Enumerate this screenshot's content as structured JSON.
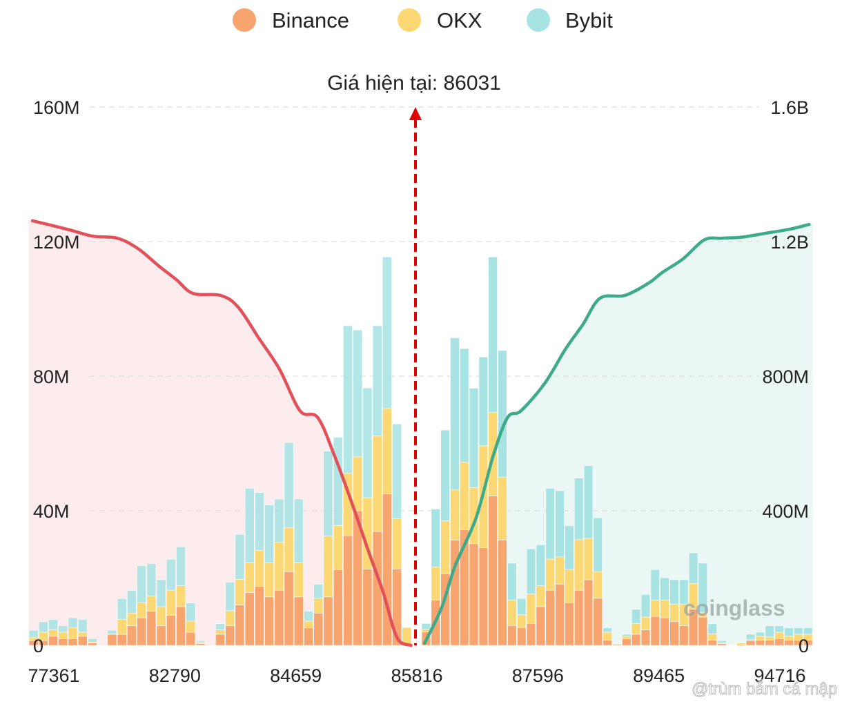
{
  "legend": [
    {
      "name": "Binance",
      "color": "#F7A46E"
    },
    {
      "name": "OKX",
      "color": "#FCD874"
    },
    {
      "name": "Bybit",
      "color": "#A8E3E4"
    }
  ],
  "watermarks": {
    "brand": "coinglass",
    "credit": "@trùm bắm cá mập"
  },
  "chart_data": {
    "type": "bar",
    "stacked": true,
    "title": "Giá hiện tại: 86031",
    "current_price": 86031,
    "left_axis": {
      "ticks": [
        "0",
        "40M",
        "80M",
        "120M",
        "160M"
      ],
      "range": [
        0,
        160
      ],
      "unit": "M"
    },
    "right_axis": {
      "ticks": [
        "0",
        "400M",
        "800M",
        "1.2B",
        "1.6B"
      ],
      "range": [
        0,
        1.6
      ],
      "unit": "B"
    },
    "x_tick_labels": [
      "77361",
      "82790",
      "84659",
      "85816",
      "87596",
      "89465",
      "94716"
    ],
    "grid": true,
    "legend_position": "top",
    "series_order": [
      "Binance",
      "OKX",
      "Bybit"
    ],
    "colors": {
      "short_line": "#E2505A",
      "short_fill": "#FDECEE",
      "long_line": "#3DAA8A",
      "long_fill": "#EAF7F4",
      "current_price_line": "#E00000"
    },
    "left_bars_M": [
      [
        1.4,
        0.9,
        2.2
      ],
      [
        1.4,
        2.5,
        3.1
      ],
      [
        2.7,
        1.9,
        3.1
      ],
      [
        2.0,
        1.9,
        1.9
      ],
      [
        2.0,
        3.3,
        2.9
      ],
      [
        2.7,
        1.2,
        3.8
      ],
      [
        0.7,
        0.3,
        1.0
      ],
      null,
      [
        3.3,
        0.1,
        1.1
      ],
      [
        3.3,
        4.4,
        6.2
      ],
      [
        5.8,
        3.8,
        6.7
      ],
      [
        8.2,
        4.5,
        11.0
      ],
      [
        10.1,
        4.5,
        9.7
      ],
      [
        5.8,
        5.7,
        8.0
      ],
      [
        8.9,
        7.5,
        9.2
      ],
      [
        11.5,
        6.2,
        11.6
      ],
      [
        3.9,
        3.3,
        5.4
      ],
      [
        0.5,
        0.4,
        0.5
      ],
      null,
      [
        3.3,
        1.3,
        1.8
      ],
      [
        5.8,
        4.5,
        8.5
      ],
      [
        12.0,
        7.6,
        13.4
      ],
      [
        15.7,
        8.8,
        22.2
      ],
      [
        17.5,
        10.7,
        17.2
      ],
      [
        14.4,
        10.1,
        17.2
      ],
      [
        16.4,
        14.2,
        12.9
      ],
      [
        21.9,
        13.1,
        25.3
      ],
      [
        14.4,
        10.1,
        19.0
      ],
      [
        5.2,
        2.0,
        3.0
      ],
      [
        9.6,
        4.4,
        4.2
      ],
      [
        14.4,
        18.1,
        25.2
      ],
      [
        22.5,
        13.1,
        26.2
      ],
      [
        32.6,
        18.5,
        43.9
      ],
      [
        40.0,
        16.0,
        37.7
      ],
      [
        22.7,
        21.2,
        32.6
      ],
      [
        33.8,
        28.4,
        32.8
      ],
      [
        45.0,
        25.4,
        45.0
      ],
      [
        22.7,
        14.9,
        28.2
      ],
      [
        0.3,
        5.0,
        0
      ]
    ],
    "right_bars_M": [
      [
        4.0,
        0.7,
        1.8
      ],
      [
        13.4,
        9.9,
        17.2
      ],
      [
        21.3,
        15.7,
        27.0
      ],
      [
        31.3,
        14.9,
        45.2
      ],
      [
        34.4,
        20.0,
        33.8
      ],
      [
        30.2,
        16.7,
        29.5
      ],
      [
        29.0,
        30.3,
        26.4
      ],
      [
        44.4,
        24.8,
        46.2
      ],
      [
        31.3,
        18.6,
        37.7
      ],
      [
        5.9,
        7.5,
        11.0
      ],
      [
        5.3,
        3.8,
        4.8
      ],
      [
        6.5,
        8.8,
        13.4
      ],
      [
        11.5,
        6.2,
        12.2
      ],
      [
        16.4,
        9.2,
        21.1
      ],
      [
        18.2,
        8.1,
        19.7
      ],
      [
        12.7,
        9.9,
        12.9
      ],
      [
        16.4,
        15.0,
        18.3
      ],
      [
        19.5,
        12.3,
        21.6
      ],
      [
        14.0,
        7.9,
        16.0
      ],
      [
        1.5,
        2.4,
        1.3
      ],
      [
        0.3,
        0.2,
        0.2
      ],
      [
        2.0,
        0.7,
        0.6
      ],
      [
        3.3,
        3.2,
        4.2
      ],
      [
        4.6,
        3.8,
        6.7
      ],
      [
        8.6,
        4.8,
        9.1
      ],
      [
        8.2,
        5.2,
        6.7
      ],
      [
        7.1,
        5.1,
        7.3
      ],
      [
        5.8,
        6.4,
        7.3
      ],
      [
        10.8,
        7.6,
        9.1
      ],
      [
        8.4,
        1.4,
        14.6
      ],
      [
        1.5,
        1.9,
        3.0
      ],
      [
        0.5,
        0.3,
        0.6
      ],
      [
        0.1,
        0.1,
        0
      ],
      [
        0.3,
        0.4,
        0.1
      ],
      [
        1.4,
        0.3,
        1.6
      ],
      [
        1.5,
        1.2,
        1.2
      ],
      [
        1.5,
        1.0,
        3.3
      ],
      [
        2.0,
        1.9,
        1.9
      ],
      [
        1.5,
        1.2,
        2.5
      ],
      [
        1.5,
        1.8,
        1.9
      ],
      [
        1.5,
        1.8,
        1.9
      ]
    ],
    "cumulative_short_B": [
      [
        0.35,
        1.262
      ],
      [
        4.1,
        1.235
      ],
      [
        6.5,
        1.216
      ],
      [
        9.0,
        1.21
      ],
      [
        11.1,
        1.179
      ],
      [
        13.2,
        1.128
      ],
      [
        15.0,
        1.087
      ],
      [
        16.7,
        1.046
      ],
      [
        19.5,
        1.04
      ],
      [
        21.3,
        1.005
      ],
      [
        23.4,
        0.913
      ],
      [
        25.5,
        0.821
      ],
      [
        27.6,
        0.697
      ],
      [
        29.4,
        0.677
      ],
      [
        31.1,
        0.564
      ],
      [
        32.9,
        0.421
      ],
      [
        34.6,
        0.277
      ],
      [
        36.1,
        0.154
      ],
      [
        37.1,
        0.051
      ],
      [
        37.8,
        0.01
      ],
      [
        38.9,
        0.0
      ]
    ],
    "cumulative_long_B": [
      [
        0.3,
        0.006
      ],
      [
        2.1,
        0.113
      ],
      [
        3.5,
        0.236
      ],
      [
        5.7,
        0.379
      ],
      [
        7.5,
        0.564
      ],
      [
        9.0,
        0.677
      ],
      [
        10.4,
        0.697
      ],
      [
        12.9,
        0.779
      ],
      [
        15.1,
        0.882
      ],
      [
        16.9,
        0.954
      ],
      [
        18.7,
        1.032
      ],
      [
        21.3,
        1.04
      ],
      [
        23.8,
        1.077
      ],
      [
        25.2,
        1.108
      ],
      [
        27.4,
        1.149
      ],
      [
        29.6,
        1.205
      ],
      [
        31.4,
        1.21
      ],
      [
        33.5,
        1.213
      ],
      [
        36.1,
        1.225
      ],
      [
        38.6,
        1.237
      ],
      [
        40.6,
        1.251
      ]
    ]
  }
}
